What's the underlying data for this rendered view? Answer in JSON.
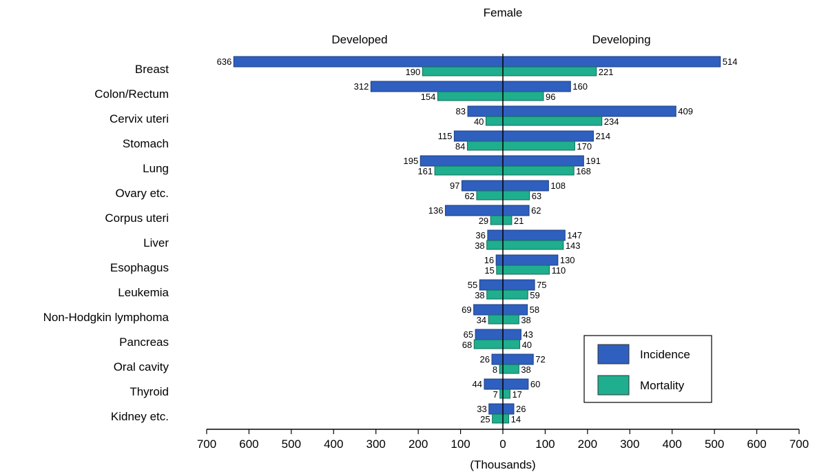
{
  "chart_data": {
    "type": "bar",
    "orientation": "horizontal-butterfly",
    "title": "Female",
    "left_group_label": "Developed",
    "right_group_label": "Developing",
    "xlabel": "(Thousands)",
    "xlim": [
      -700,
      700
    ],
    "xticks": [
      -700,
      -600,
      -500,
      -400,
      -300,
      -200,
      -100,
      0,
      100,
      200,
      300,
      400,
      500,
      600,
      700
    ],
    "xtick_labels": [
      "700",
      "600",
      "500",
      "400",
      "300",
      "200",
      "100",
      "0",
      "100",
      "200",
      "300",
      "400",
      "500",
      "600",
      "700"
    ],
    "categories": [
      "Breast",
      "Colon/Rectum",
      "Cervix uteri",
      "Stomach",
      "Lung",
      "Ovary etc.",
      "Corpus uteri",
      "Liver",
      "Esophagus",
      "Leukemia",
      "Non-Hodgkin lymphoma",
      "Pancreas",
      "Oral cavity",
      "Thyroid",
      "Kidney etc."
    ],
    "series": [
      {
        "name": "Incidence",
        "group": "Developed",
        "color": "#2f5fbf",
        "values": [
          636,
          312,
          83,
          115,
          195,
          97,
          136,
          36,
          16,
          55,
          69,
          65,
          26,
          44,
          33
        ]
      },
      {
        "name": "Mortality",
        "group": "Developed",
        "color": "#1fae8e",
        "values": [
          190,
          154,
          40,
          84,
          161,
          62,
          29,
          38,
          15,
          38,
          34,
          68,
          8,
          7,
          25
        ]
      },
      {
        "name": "Incidence",
        "group": "Developing",
        "color": "#2f5fbf",
        "values": [
          514,
          160,
          409,
          214,
          191,
          108,
          62,
          147,
          130,
          75,
          58,
          43,
          72,
          60,
          26
        ]
      },
      {
        "name": "Mortality",
        "group": "Developing",
        "color": "#1fae8e",
        "values": [
          221,
          96,
          234,
          170,
          168,
          63,
          21,
          143,
          110,
          59,
          38,
          40,
          38,
          17,
          14
        ]
      }
    ],
    "legend": {
      "position": "bottom-right",
      "items": [
        {
          "label": "Incidence",
          "color": "#2f5fbf"
        },
        {
          "label": "Mortality",
          "color": "#1fae8e"
        }
      ]
    },
    "grid": false
  }
}
